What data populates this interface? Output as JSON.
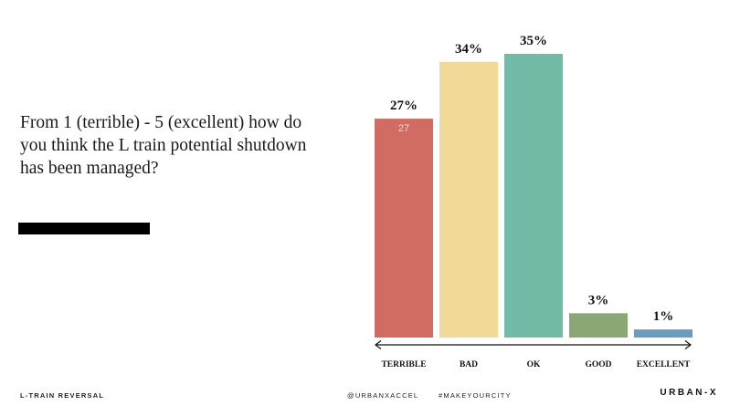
{
  "question": "From 1 (terrible) - 5 (excellent) how do you think the L train potential shutdown has been managed?",
  "chart_data": {
    "type": "bar",
    "categories": [
      "TERRIBLE",
      "BAD",
      "OK",
      "GOOD",
      "EXCELLENT"
    ],
    "values": [
      27,
      34,
      35,
      3,
      1
    ],
    "value_labels": [
      "27%",
      "34%",
      "35%",
      "3%",
      "1%"
    ],
    "inner_label": "27",
    "colors": [
      "#d06c62",
      "#f3d998",
      "#72bba7",
      "#8aa775",
      "#6c9bbd"
    ],
    "title": "",
    "xlabel": "",
    "ylabel": "",
    "ylim": [
      0,
      35
    ]
  },
  "footer": {
    "left": "L-TRAIN REVERSAL",
    "handle": "@URBANXACCEL",
    "hashtag": "#MAKEYOURCITY",
    "brand": "URBAN-X"
  }
}
